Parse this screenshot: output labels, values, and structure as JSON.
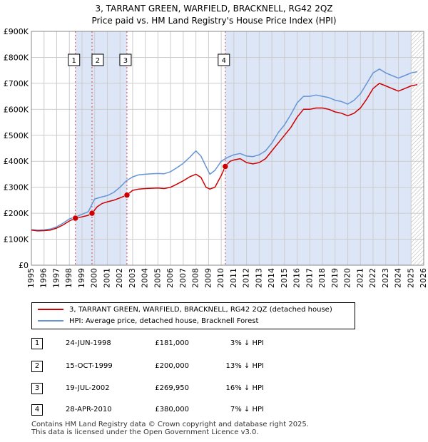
{
  "title_line1": "3, TARRANT GREEN, WARFIELD, BRACKNELL, RG42 2QZ",
  "title_line2": "Price paid vs. HM Land Registry's House Price Index (HPI)",
  "legend": {
    "red_label": "3, TARRANT GREEN, WARFIELD, BRACKNELL, RG42 2QZ (detached house)",
    "blue_label": "HPI: Average price, detached house, Bracknell Forest"
  },
  "colors": {
    "red": "#cc0000",
    "blue": "#6495d6",
    "shade": "#dde6f6",
    "grid": "#cccccc"
  },
  "transactions": [
    {
      "num": "1",
      "date": "24-JUN-1998",
      "price": "£181,000",
      "hpi": "3% ↓ HPI"
    },
    {
      "num": "2",
      "date": "15-OCT-1999",
      "price": "£200,000",
      "hpi": "13% ↓ HPI"
    },
    {
      "num": "3",
      "date": "19-JUL-2002",
      "price": "£269,950",
      "hpi": "16% ↓ HPI"
    },
    {
      "num": "4",
      "date": "28-APR-2010",
      "price": "£380,000",
      "hpi": "7% ↓ HPI"
    }
  ],
  "footer_line1": "Contains HM Land Registry data © Crown copyright and database right 2025.",
  "footer_line2": "This data is licensed under the Open Government Licence v3.0.",
  "chart_data": {
    "type": "line",
    "title": "3, TARRANT GREEN, WARFIELD, BRACKNELL, RG42 2QZ",
    "subtitle": "Price paid vs. HM Land Registry's House Price Index (HPI)",
    "xlabel": "",
    "ylabel": "",
    "xlim": [
      1995,
      2026
    ],
    "ylim": [
      0,
      900000
    ],
    "y_ticks": [
      0,
      100000,
      200000,
      300000,
      400000,
      500000,
      600000,
      700000,
      800000,
      900000
    ],
    "y_tick_labels": [
      "£0",
      "£100K",
      "£200K",
      "£300K",
      "£400K",
      "£500K",
      "£600K",
      "£700K",
      "£800K",
      "£900K"
    ],
    "x_ticks": [
      1995,
      1996,
      1997,
      1998,
      1999,
      2000,
      2001,
      2002,
      2003,
      2004,
      2005,
      2006,
      2007,
      2008,
      2009,
      2010,
      2011,
      2012,
      2013,
      2014,
      2015,
      2016,
      2017,
      2018,
      2019,
      2020,
      2021,
      2022,
      2023,
      2024,
      2025,
      2026
    ],
    "grid": true,
    "shaded_ranges": [
      [
        1998.48,
        2002.55
      ],
      [
        2010.32,
        2025.0
      ]
    ],
    "sales": [
      {
        "label": "1",
        "x": 1998.48,
        "y": 181000
      },
      {
        "label": "2",
        "x": 1999.79,
        "y": 200000
      },
      {
        "label": "3",
        "x": 2002.55,
        "y": 269950
      },
      {
        "label": "4",
        "x": 2010.32,
        "y": 380000
      }
    ],
    "series": [
      {
        "name": "3, TARRANT GREEN, WARFIELD, BRACKNELL, RG42 2QZ (detached house)",
        "color": "#cc0000",
        "x": [
          1995.0,
          1995.5,
          1996.0,
          1996.5,
          1997.0,
          1997.5,
          1998.0,
          1998.48,
          1999.0,
          1999.5,
          1999.79,
          2000.2,
          2000.6,
          2001.0,
          2001.5,
          2002.0,
          2002.55,
          2003.0,
          2003.5,
          2004.0,
          2004.5,
          2005.0,
          2005.5,
          2006.0,
          2006.5,
          2007.0,
          2007.5,
          2008.0,
          2008.4,
          2008.8,
          2009.1,
          2009.5,
          2010.0,
          2010.32,
          2010.7,
          2011.0,
          2011.5,
          2012.0,
          2012.5,
          2013.0,
          2013.5,
          2014.0,
          2014.5,
          2015.0,
          2015.5,
          2016.0,
          2016.5,
          2017.0,
          2017.5,
          2018.0,
          2018.5,
          2019.0,
          2019.5,
          2020.0,
          2020.5,
          2021.0,
          2021.5,
          2022.0,
          2022.5,
          2023.0,
          2023.5,
          2024.0,
          2024.5,
          2025.0,
          2025.5
        ],
        "y": [
          135000,
          132000,
          133000,
          135000,
          143000,
          155000,
          170000,
          181000,
          186000,
          192000,
          200000,
          225000,
          238000,
          244000,
          250000,
          259000,
          269950,
          288000,
          293000,
          295000,
          296000,
          297000,
          295000,
          300000,
          312000,
          325000,
          340000,
          350000,
          338000,
          300000,
          293000,
          300000,
          345000,
          380000,
          400000,
          405000,
          410000,
          395000,
          390000,
          395000,
          410000,
          440000,
          470000,
          500000,
          530000,
          570000,
          600000,
          600000,
          605000,
          605000,
          600000,
          590000,
          585000,
          575000,
          585000,
          605000,
          640000,
          680000,
          700000,
          690000,
          680000,
          670000,
          680000,
          690000,
          695000
        ]
      },
      {
        "name": "HPI: Average price, detached house, Bracknell Forest",
        "color": "#6495d6",
        "x": [
          1995.0,
          1995.5,
          1996.0,
          1996.5,
          1997.0,
          1997.5,
          1998.0,
          1998.5,
          1999.0,
          1999.5,
          2000.0,
          2000.5,
          2001.0,
          2001.5,
          2002.0,
          2002.5,
          2003.0,
          2003.5,
          2004.0,
          2004.5,
          2005.0,
          2005.5,
          2006.0,
          2006.5,
          2007.0,
          2007.5,
          2008.0,
          2008.4,
          2008.8,
          2009.1,
          2009.5,
          2010.0,
          2010.5,
          2011.0,
          2011.5,
          2012.0,
          2012.5,
          2013.0,
          2013.5,
          2014.0,
          2014.5,
          2015.0,
          2015.5,
          2016.0,
          2016.5,
          2017.0,
          2017.5,
          2018.0,
          2018.5,
          2019.0,
          2019.5,
          2020.0,
          2020.5,
          2021.0,
          2021.5,
          2022.0,
          2022.5,
          2023.0,
          2023.5,
          2024.0,
          2024.5,
          2025.0,
          2025.5
        ],
        "y": [
          137000,
          135000,
          136000,
          139000,
          148000,
          162000,
          178000,
          186000,
          196000,
          206000,
          255000,
          262000,
          268000,
          280000,
          300000,
          325000,
          340000,
          348000,
          350000,
          352000,
          353000,
          352000,
          360000,
          375000,
          392000,
          415000,
          440000,
          420000,
          380000,
          350000,
          365000,
          400000,
          415000,
          425000,
          430000,
          420000,
          418000,
          425000,
          440000,
          470000,
          510000,
          540000,
          580000,
          625000,
          650000,
          650000,
          655000,
          650000,
          645000,
          635000,
          630000,
          620000,
          635000,
          660000,
          700000,
          740000,
          755000,
          740000,
          730000,
          720000,
          730000,
          740000,
          745000
        ]
      }
    ]
  }
}
